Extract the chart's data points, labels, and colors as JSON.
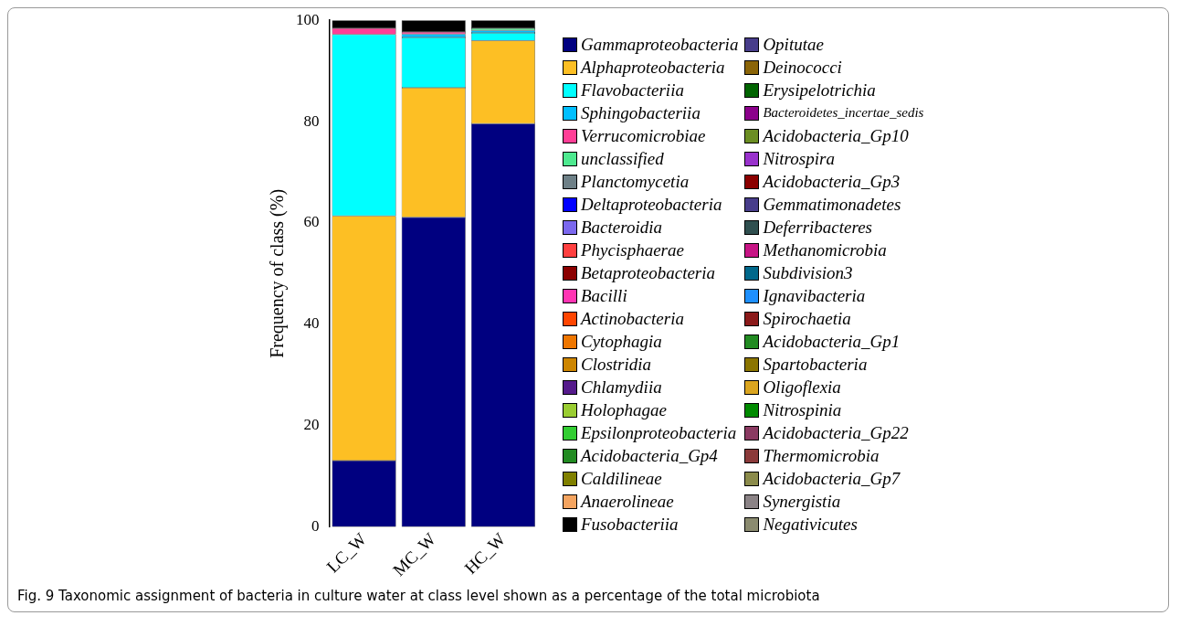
{
  "chart_data": {
    "type": "bar",
    "stacked": true,
    "ylabel": "Frequency of class (%)",
    "categories": [
      "LC_W",
      "MC_W",
      "HC_W"
    ],
    "ylim": [
      0,
      100
    ],
    "yticks": [
      0,
      20,
      40,
      60,
      80,
      100
    ],
    "grid": false,
    "legend": "right",
    "annotations": [
      "Fig. 9 Taxonomic assignment of bacteria in culture water at class level shown as a percentage of the total microbiota"
    ],
    "series": [
      {
        "name": "Gammaproteobacteria",
        "color": "#000080",
        "values": [
          13.1,
          61.1,
          79.6
        ]
      },
      {
        "name": "Alphaproteobacteria",
        "color": "#fdbf24",
        "values": [
          48.3,
          25.6,
          16.4
        ]
      },
      {
        "name": "Flavobacteriia",
        "color": "#00ffff",
        "values": [
          35.8,
          9.9,
          1.5
        ]
      },
      {
        "name": "Sphingobacteriia",
        "color": "#00bfff",
        "values": [
          null,
          0.7,
          0.5
        ]
      },
      {
        "name": "Verrucomicrobiae",
        "color": "#ff3e96",
        "values": [
          1.2,
          0.4,
          null
        ]
      },
      {
        "name": "unclassified",
        "color": "#4ee98f",
        "values": [
          null,
          null,
          0.4
        ]
      },
      {
        "name": "Planctomycetia",
        "color": "#6e8087",
        "values": [
          null,
          null,
          null
        ]
      },
      {
        "name": "Deltaproteobacteria",
        "color": "#0000ff",
        "values": [
          null,
          null,
          null
        ]
      },
      {
        "name": "Bacteroidia",
        "color": "#7b68ee",
        "values": [
          null,
          null,
          null
        ]
      },
      {
        "name": "Phycisphaerae",
        "color": "#ff4040",
        "values": [
          null,
          null,
          null
        ]
      },
      {
        "name": "Betaproteobacteria",
        "color": "#8b0000",
        "values": [
          null,
          null,
          null
        ]
      },
      {
        "name": "Bacilli",
        "color": "#ff34b3",
        "values": [
          null,
          null,
          null
        ]
      },
      {
        "name": "Actinobacteria",
        "color": "#ff4500",
        "values": [
          null,
          null,
          null
        ]
      },
      {
        "name": "Cytophagia",
        "color": "#ee7600",
        "values": [
          null,
          null,
          null
        ]
      },
      {
        "name": "Clostridia",
        "color": "#cd8500",
        "values": [
          null,
          null,
          null
        ]
      },
      {
        "name": "Chlamydiia",
        "color": "#551a8b",
        "values": [
          null,
          null,
          null
        ]
      },
      {
        "name": "Holophagae",
        "color": "#9acd32",
        "values": [
          null,
          null,
          null
        ]
      },
      {
        "name": "Epsilonproteobacteria",
        "color": "#32cd32",
        "values": [
          null,
          null,
          null
        ]
      },
      {
        "name": "Acidobacteria_Gp4",
        "color": "#228b22",
        "values": [
          null,
          null,
          null
        ]
      },
      {
        "name": "Caldilineae",
        "color": "#808000",
        "values": [
          null,
          null,
          null
        ]
      },
      {
        "name": "Anaerolineae",
        "color": "#f4a460",
        "values": [
          null,
          null,
          null
        ]
      },
      {
        "name": "Fusobacteriia",
        "color": "#000000",
        "values": [
          1.6,
          2.3,
          1.6
        ]
      },
      {
        "name": "Opitutae",
        "color": "#483d8b",
        "values": [
          null,
          null,
          null
        ]
      },
      {
        "name": "Deinococci",
        "color": "#8b6508",
        "values": [
          null,
          null,
          null
        ]
      },
      {
        "name": "Erysipelotrichia",
        "color": "#006400",
        "values": [
          null,
          null,
          null
        ]
      },
      {
        "name": "Bacteroidetes_incertae_sedis",
        "color": "#8b008b",
        "values": [
          null,
          null,
          null
        ]
      },
      {
        "name": "Acidobacteria_Gp10",
        "color": "#6b8e23",
        "values": [
          null,
          null,
          null
        ]
      },
      {
        "name": "Nitrospira",
        "color": "#9932cc",
        "values": [
          null,
          null,
          null
        ]
      },
      {
        "name": "Acidobacteria_Gp3",
        "color": "#8b0000",
        "values": [
          null,
          null,
          null
        ]
      },
      {
        "name": "Gemmatimonadetes",
        "color": "#483d8b",
        "values": [
          null,
          null,
          null
        ]
      },
      {
        "name": "Deferribacteres",
        "color": "#2f4f4f",
        "values": [
          null,
          null,
          null
        ]
      },
      {
        "name": "Methanomicrobia",
        "color": "#c71585",
        "values": [
          null,
          null,
          null
        ]
      },
      {
        "name": "Subdivision3",
        "color": "#00688b",
        "values": [
          null,
          null,
          null
        ]
      },
      {
        "name": "Ignavibacteria",
        "color": "#1e90ff",
        "values": [
          null,
          null,
          null
        ]
      },
      {
        "name": "Spirochaetia",
        "color": "#8b1a1a",
        "values": [
          null,
          null,
          null
        ]
      },
      {
        "name": "Acidobacteria_Gp1",
        "color": "#228b22",
        "values": [
          null,
          null,
          null
        ]
      },
      {
        "name": "Spartobacteria",
        "color": "#8b7500",
        "values": [
          null,
          null,
          null
        ]
      },
      {
        "name": "Oligoflexia",
        "color": "#daa520",
        "values": [
          null,
          null,
          null
        ]
      },
      {
        "name": "Nitrospinia",
        "color": "#008b00",
        "values": [
          null,
          null,
          null
        ]
      },
      {
        "name": "Acidobacteria_Gp22",
        "color": "#8b3a62",
        "values": [
          null,
          null,
          null
        ]
      },
      {
        "name": "Thermomicrobia",
        "color": "#8b3a3a",
        "values": [
          null,
          null,
          null
        ]
      },
      {
        "name": "Acidobacteria_Gp7",
        "color": "#8b8b4b",
        "values": [
          null,
          null,
          null
        ]
      },
      {
        "name": "Synergistia",
        "color": "#8b8386",
        "values": [
          null,
          null,
          null
        ]
      },
      {
        "name": "Negativicutes",
        "color": "#8b8b70",
        "values": [
          null,
          null,
          null
        ]
      }
    ]
  }
}
